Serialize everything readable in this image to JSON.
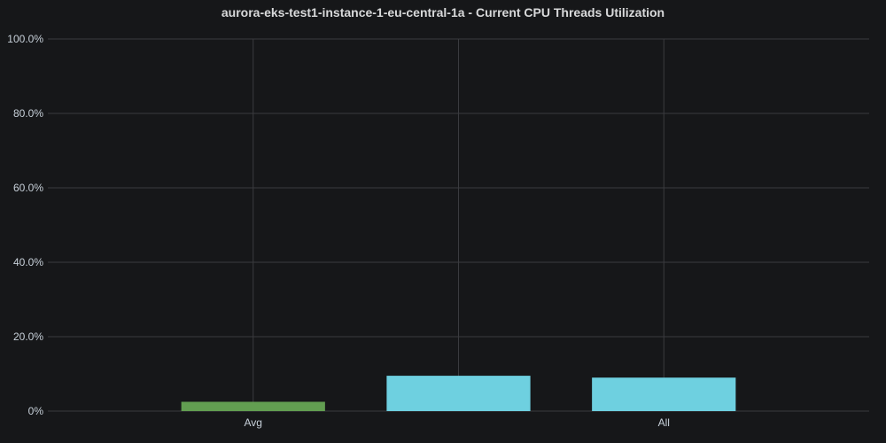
{
  "panel": {
    "title": "aurora-eks-test1-instance-1-eu-central-1a - Current CPU Threads Utilization"
  },
  "chart_data": {
    "type": "bar",
    "title": "aurora-eks-test1-instance-1-eu-central-1a - Current CPU Threads Utilization",
    "categories": [
      "Avg",
      "",
      "All"
    ],
    "values": [
      2.5,
      9.5,
      9.0
    ],
    "bar_colors": [
      "#629e51",
      "#6ed0e0",
      "#6ed0e0"
    ],
    "ylim": [
      0,
      100
    ],
    "y_ticks": [
      0,
      20,
      40,
      60,
      80,
      100
    ],
    "y_tick_labels": [
      "0%",
      "20.0%",
      "40.0%",
      "60.0%",
      "80.0%",
      "100.0%"
    ],
    "grid": true,
    "legend": "none"
  },
  "colors": {
    "background": "#161719",
    "grid": "#3a3b3f",
    "axis_text": "#c7d0d9"
  }
}
